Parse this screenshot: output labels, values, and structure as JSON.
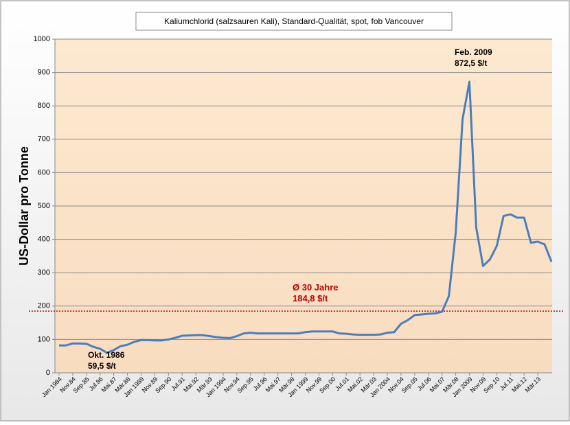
{
  "chart_data": {
    "type": "line",
    "title": "Kaliumchlorid (salzsauren Kali), Standard-Qualität, spot, fob Vancouver",
    "y_label": "US-Dollar  pro Tonne",
    "categories": [
      "Jan 1984",
      null,
      "Nov.84",
      null,
      "Sep.85",
      null,
      "Jul.86",
      null,
      "Mai.87",
      null,
      "Mär.88",
      null,
      "Jan 1989",
      null,
      "Nov.89",
      null,
      "Sep.90",
      null,
      "Jul.91",
      null,
      "Mai.92",
      null,
      "Mär.93",
      null,
      "Jan 1994",
      null,
      "Nov.94",
      null,
      "Sep.95",
      null,
      "Jul.96",
      null,
      "Mai.97",
      null,
      "Mär.98",
      null,
      "Jan 1999",
      null,
      "Nov.99",
      null,
      "Sep.00",
      null,
      "Jul.01",
      null,
      "Mai.02",
      null,
      "Mär.03",
      null,
      "Jan 2004",
      null,
      "Nov.04",
      null,
      "Sep.05",
      null,
      "Jul.06",
      null,
      "Mai.07",
      null,
      "Mär.08",
      null,
      "Jan 2009",
      null,
      "Nov.09",
      null,
      "Sep.10",
      null,
      "Jul.11",
      null,
      "Mai.12",
      null,
      "Mär.13",
      null,
      null
    ],
    "series": [
      {
        "color": "#4a7ebb",
        "values": [
          82,
          82,
          88,
          88,
          87,
          78,
          72,
          60,
          68,
          80,
          84,
          93,
          98,
          98,
          97,
          97,
          100,
          105,
          111,
          112,
          113,
          113,
          110,
          107,
          105,
          104,
          110,
          118,
          120,
          118,
          118,
          118,
          118,
          118,
          118,
          118,
          122,
          124,
          124,
          124,
          124,
          118,
          117,
          115,
          114,
          114,
          114,
          115,
          120,
          122,
          147,
          158,
          173,
          175,
          177,
          178,
          183,
          230,
          420,
          760,
          872.5,
          435,
          320,
          340,
          380,
          470,
          475,
          465,
          465,
          390,
          393,
          385,
          333
        ]
      }
    ],
    "average": {
      "value": 184.8,
      "color": "#c00000",
      "labels": [
        "Ø 30 Jahre",
        "184,8 $/t"
      ]
    },
    "annotations": [
      {
        "lines": [
          "Okt. 1986",
          "59,5 $/t"
        ]
      },
      {
        "lines": [
          "Feb. 2009",
          "872,5  $/t"
        ]
      }
    ],
    "ylim": [
      0,
      1000
    ],
    "yticks": [
      0,
      100,
      200,
      300,
      400,
      500,
      600,
      700,
      800,
      900,
      1000
    ],
    "grid": true
  }
}
